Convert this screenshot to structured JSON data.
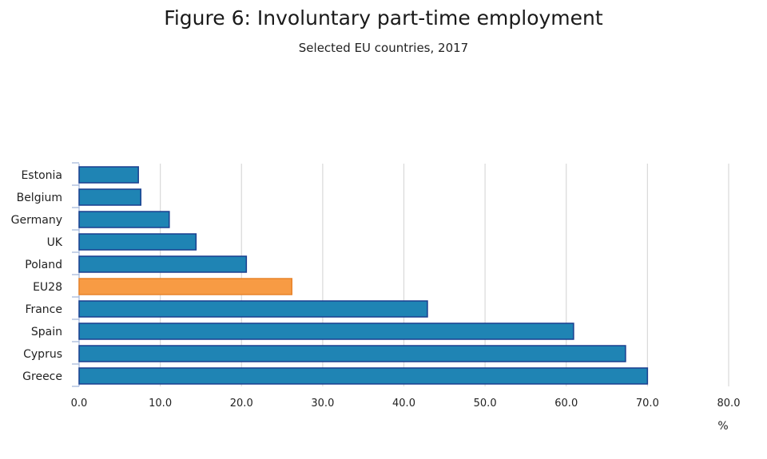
{
  "chart_data": {
    "type": "bar",
    "orientation": "horizontal",
    "title": "Figure 6: Involuntary part-time employment",
    "subtitle": "Selected EU countries, 2017",
    "categories": [
      "Estonia",
      "Belgium",
      "Germany",
      "UK",
      "Poland",
      "EU28",
      "France",
      "Spain",
      "Cyprus",
      "Greece"
    ],
    "values": [
      7.3,
      7.6,
      11.1,
      14.4,
      20.6,
      26.2,
      42.9,
      60.9,
      67.3,
      70.0
    ],
    "highlight": "EU28",
    "xlabel": "%",
    "ylabel": "",
    "xlim": [
      0,
      80
    ],
    "xticks": [
      "0.0",
      "10.0",
      "20.0",
      "30.0",
      "40.0",
      "50.0",
      "60.0",
      "70.0",
      "80.0"
    ],
    "grid": true,
    "colors": {
      "bar_fill": "#1f84b4",
      "bar_stroke": "#1a3f8f",
      "highlight_fill": "#f79b44",
      "highlight_stroke": "#e8832a",
      "grid": "#d9d9d9",
      "axis": "#9fb3d9"
    }
  }
}
